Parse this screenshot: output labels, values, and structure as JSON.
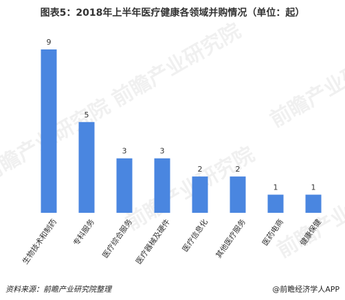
{
  "chart_data": {
    "type": "bar",
    "title": "图表5：2018年上半年医疗健康各领域并购情况（单位：起）",
    "categories": [
      "生物技术和制药",
      "专科服务",
      "医疗综合服务",
      "医疗器械及硬件",
      "医疗信息化",
      "其他医疗服务",
      "医药电商",
      "健康保健"
    ],
    "values": [
      9,
      5,
      3,
      3,
      2,
      2,
      1,
      1
    ],
    "ylim": [
      0,
      9
    ],
    "bar_color": "#4a86e0",
    "grid": false,
    "xlabel": "",
    "ylabel": ""
  },
  "footer": {
    "source": "资料来源：前瞻产业研究院整理",
    "brand": "@前瞻经济学人APP"
  },
  "watermark_text": "前瞻产业研究院"
}
